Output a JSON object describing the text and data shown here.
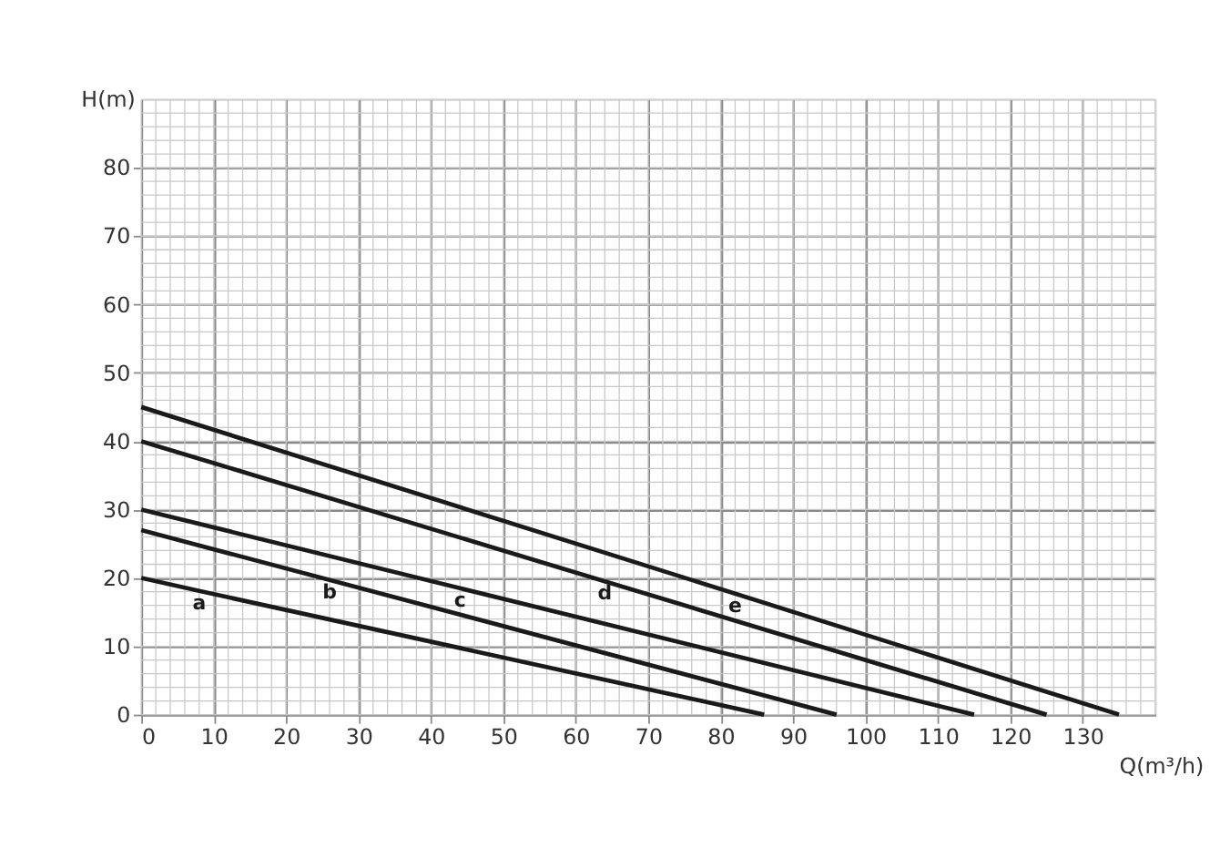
{
  "chart_data": {
    "type": "line",
    "xlabel": "Q(m³/h)",
    "ylabel": "H(m)",
    "xlim": [
      0,
      140
    ],
    "xticks": [
      0,
      10,
      20,
      30,
      40,
      50,
      60,
      70,
      80,
      90,
      100,
      110,
      120,
      130
    ],
    "ylim": [
      0,
      90
    ],
    "yticks": [
      0,
      10,
      20,
      30,
      40,
      50,
      60,
      70,
      80
    ],
    "grid": true,
    "marker": "none",
    "line_style": "solid",
    "series": [
      {
        "name": "a",
        "color": "#1a1a1a",
        "x": [
          0,
          8,
          86
        ],
        "values": [
          20,
          18.1,
          0
        ]
      },
      {
        "name": "b",
        "color": "#1a1a1a",
        "x": [
          0,
          26,
          96
        ],
        "values": [
          27,
          19.7,
          0
        ]
      },
      {
        "name": "c",
        "color": "#1a1a1a",
        "x": [
          0,
          44,
          115
        ],
        "values": [
          30,
          18.5,
          0
        ]
      },
      {
        "name": "d",
        "color": "#1a1a1a",
        "x": [
          0,
          64,
          125
        ],
        "values": [
          40,
          19.5,
          0
        ]
      },
      {
        "name": "e",
        "color": "#1a1a1a",
        "x": [
          0,
          82,
          135
        ],
        "values": [
          45,
          17.7,
          0
        ]
      }
    ]
  }
}
